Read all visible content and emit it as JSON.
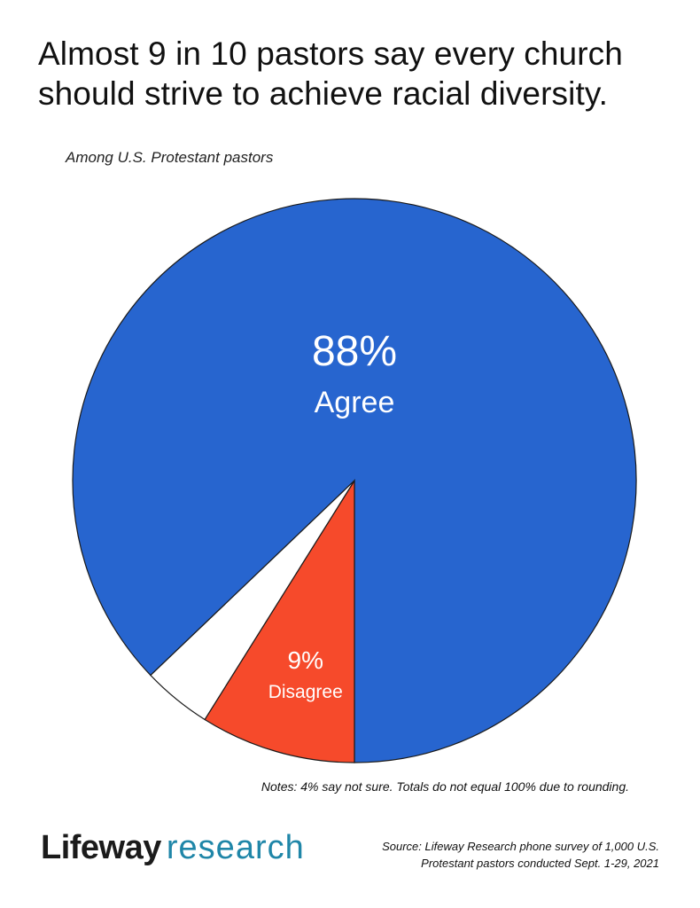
{
  "header": {
    "title_line1": "Almost 9 in 10 pastors say every church",
    "title_line2": "should strive to achieve racial diversity.",
    "subtitle": "Among U.S. Protestant pastors"
  },
  "chart_data": {
    "type": "pie",
    "title": "Almost 9 in 10 pastors say every church should strive to achieve racial diversity.",
    "subtitle": "Among U.S. Protestant pastors",
    "slices": [
      {
        "key": "agree",
        "label": "Agree",
        "value": 88,
        "value_label": "88%",
        "color": "#2765cf"
      },
      {
        "key": "disagree",
        "label": "Disagree",
        "value": 9,
        "value_label": "9%",
        "color": "#f64a2b"
      },
      {
        "key": "not_sure",
        "label": "",
        "value": 4,
        "value_label": "",
        "color": "#ffffff"
      }
    ]
  },
  "footer": {
    "notes": "Notes: 4% say not sure. Totals do not equal 100% due to rounding.",
    "logo_brand": "Lifeway",
    "logo_sub": "research",
    "source_line1": "Source: Lifeway Research phone survey of 1,000 U.S.",
    "source_line2": "Protestant pastors conducted Sept. 1-29, 2021"
  }
}
